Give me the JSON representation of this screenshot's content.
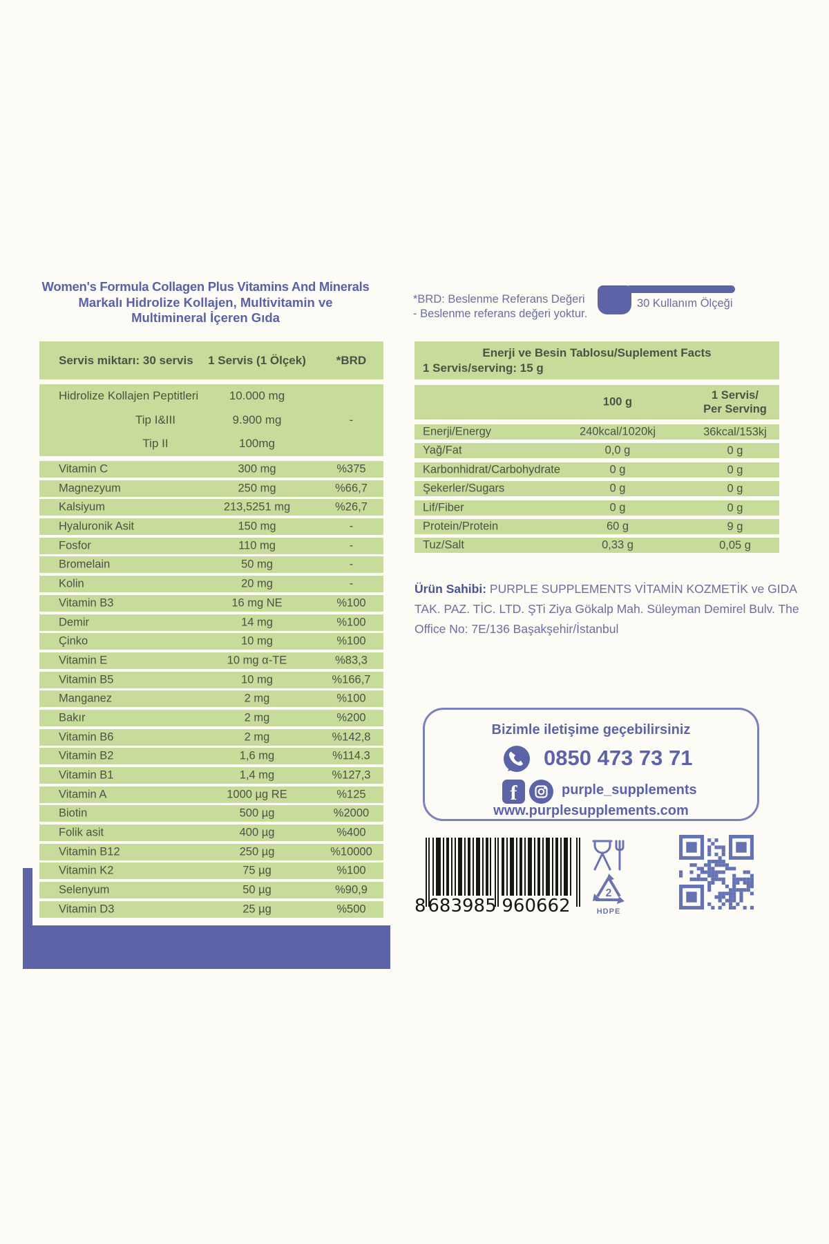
{
  "colors": {
    "green": "#c7db9b",
    "purple": "#5c63a6",
    "table_text": "#4c5345",
    "note_text": "#6b6f9d",
    "icon_purple": "#6b74ae",
    "qr_purple": "#6673b3"
  },
  "title": {
    "line1": "Women's Formula Collagen Plus Vitamins And Minerals",
    "line2": "Markalı Hidrolize Kollajen, Multivitamin ve",
    "line3": "Multimineral İçeren Gıda"
  },
  "brd_note": {
    "line1": "*BRD: Beslenme Referans Değeri",
    "line2": "- Beslenme referans değeri yoktur."
  },
  "scoop_badge": {
    "label": "30 Kullanım Ölçeği",
    "icon": "measuring-scoop-icon"
  },
  "supplement_table": {
    "header": {
      "col1": "Servis miktarı: 30 servis",
      "col2": "1 Servis (1 Ölçek)",
      "col3": "*BRD"
    },
    "collagen_group": {
      "names": [
        "Hidrolize Kollajen Peptitleri",
        "Tip I&III",
        "Tip II"
      ],
      "amounts": [
        "10.000 mg",
        "9.900 mg",
        "100mg"
      ],
      "brd": "-"
    },
    "rows": [
      {
        "name": "Vitamin C",
        "amount": "300 mg",
        "brd": "%375"
      },
      {
        "name": "Magnezyum",
        "amount": "250 mg",
        "brd": "%66,7"
      },
      {
        "name": "Kalsiyum",
        "amount": "213,5251 mg",
        "brd": "%26,7"
      },
      {
        "name": "Hyaluronik Asit",
        "amount": "150 mg",
        "brd": "-"
      },
      {
        "name": "Fosfor",
        "amount": "110 mg",
        "brd": "-"
      },
      {
        "name": "Bromelain",
        "amount": "50 mg",
        "brd": "-"
      },
      {
        "name": "Kolin",
        "amount": "20 mg",
        "brd": "-"
      },
      {
        "name": "Vitamin B3",
        "amount": "16 mg NE",
        "brd": "%100"
      },
      {
        "name": "Demir",
        "amount": "14 mg",
        "brd": "%100"
      },
      {
        "name": "Çinko",
        "amount": "10 mg",
        "brd": "%100"
      },
      {
        "name": "Vitamin E",
        "amount": "10 mg α-TE",
        "brd": "%83,3"
      },
      {
        "name": "Vitamin B5",
        "amount": "10 mg",
        "brd": "%166,7"
      },
      {
        "name": "Manganez",
        "amount": "2 mg",
        "brd": "%100"
      },
      {
        "name": "Bakır",
        "amount": "2 mg",
        "brd": "%200"
      },
      {
        "name": "Vitamin B6",
        "amount": "2 mg",
        "brd": "%142,8"
      },
      {
        "name": "Vitamin B2",
        "amount": "1,6 mg",
        "brd": "%114.3"
      },
      {
        "name": "Vitamin B1",
        "amount": "1,4 mg",
        "brd": "%127,3"
      },
      {
        "name": "Vitamin A",
        "amount": "1000 µg RE",
        "brd": "%125"
      },
      {
        "name": "Biotin",
        "amount": "500 µg",
        "brd": "%2000"
      },
      {
        "name": "Folik asit",
        "amount": "400 µg",
        "brd": "%400"
      },
      {
        "name": "Vitamin B12",
        "amount": "250 µg",
        "brd": "%10000"
      },
      {
        "name": "Vitamin K2",
        "amount": "75 µg",
        "brd": "%100"
      },
      {
        "name": "Selenyum",
        "amount": "50 µg",
        "brd": "%90,9"
      },
      {
        "name": "Vitamin D3",
        "amount": "25 µg",
        "brd": "%500"
      }
    ]
  },
  "nutrition_table": {
    "title": "Enerji ve Besin Tablosu/Suplement Facts",
    "serving": "1 Servis/serving: 15 g",
    "col_100g": "100 g",
    "col_serving_line1": "1 Servis/",
    "col_serving_line2": "Per Serving",
    "rows": [
      {
        "name": "Enerji/Energy",
        "per100": "240kcal/1020kj",
        "serving": "36kcal/153kj"
      },
      {
        "name": "Yağ/Fat",
        "per100": "0,0 g",
        "serving": "0 g"
      },
      {
        "name": "Karbonhidrat/Carbohydrate",
        "per100": "0 g",
        "serving": "0 g"
      },
      {
        "name": "Şekerler/Sugars",
        "per100": "0 g",
        "serving": "0 g"
      },
      {
        "name": "Lif/Fiber",
        "per100": "0 g",
        "serving": "0 g"
      },
      {
        "name": "Protein/Protein",
        "per100": "60 g",
        "serving": "9 g"
      },
      {
        "name": "Tuz/Salt",
        "per100": "0,33 g",
        "serving": "0,05 g"
      }
    ]
  },
  "owner": {
    "label": "Ürün Sahibi:",
    "text": " PURPLE SUPPLEMENTS VİTAMİN KOZMETİK ve GIDA TAK. PAZ. TİC. LTD. ŞTi Ziya Gökalp Mah. Süleyman Demirel Bulv. The Office No: 7E/136 Başakşehir/İstanbul"
  },
  "contact": {
    "heading": "Bizimle iletişime geçebilirsiniz",
    "phone": "0850 473 73 71",
    "social": "purple_supplements",
    "website": "www.purplesupplements.com",
    "icons": [
      "whatsapp-icon",
      "facebook-icon",
      "instagram-icon"
    ]
  },
  "barcode": {
    "digit_lead": "8",
    "digits_left": "683985",
    "digits_right": "960662"
  },
  "recycling": {
    "code": "2",
    "material": "HDPE"
  }
}
